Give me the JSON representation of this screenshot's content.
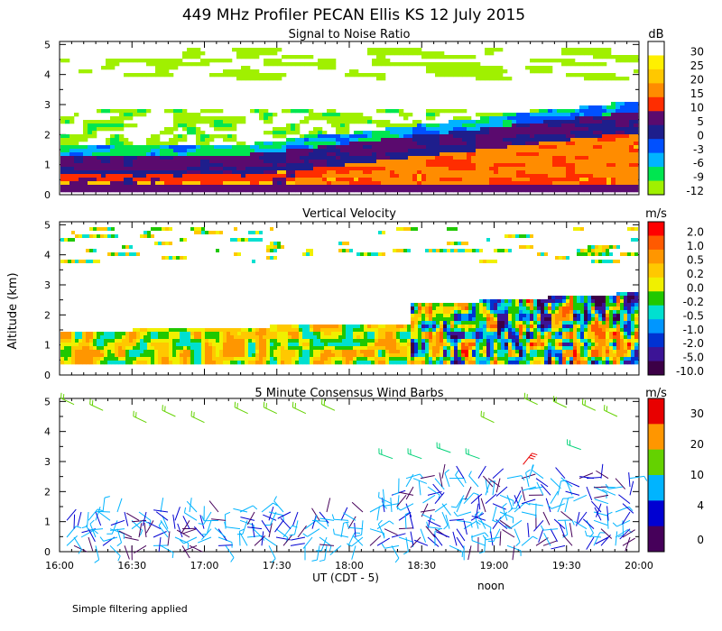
{
  "title": "449 MHz Profiler PECAN Ellis KS 12 July 2015",
  "y_axis_label": "Altitude (km)",
  "x_axis_label": "UT  (CDT - 5)",
  "noon_label": "noon",
  "footer": "Simple filtering applied",
  "chart_data": [
    {
      "type": "heatmap",
      "title": "Signal to Noise Ratio",
      "unit": "dB",
      "x_ticks": [
        "16:00",
        "16:30",
        "17:00",
        "17:30",
        "18:00",
        "18:30",
        "19:00",
        "19:30",
        "20:00"
      ],
      "y_ticks": [
        "0",
        "1",
        "2",
        "3",
        "4",
        "5"
      ],
      "xlim": [
        16.0,
        20.0
      ],
      "ylim": [
        0,
        5.1
      ],
      "colorbar": {
        "labels": [
          "30",
          "25",
          "20",
          "15",
          "10",
          "5",
          "0",
          "-3",
          "-6",
          "-9",
          "-12"
        ],
        "colors": [
          "#ffffff",
          "#fff000",
          "#ffc800",
          "#ff8c00",
          "#ff2d00",
          "#5a0a6e",
          "#1e1e8c",
          "#0050ff",
          "#00b4ff",
          "#00e650",
          "#a0f000"
        ]
      },
      "note": "Strong echo layer (10-25 dB) below ~1 km from 16:00, deepening to ~2.5 km by 20:00; scattered weak returns up to 5 km."
    },
    {
      "type": "heatmap",
      "title": "Vertical Velocity",
      "unit": "m/s",
      "x_ticks": [
        "16:00",
        "16:30",
        "17:00",
        "17:30",
        "18:00",
        "18:30",
        "19:00",
        "19:30",
        "20:00"
      ],
      "y_ticks": [
        "0",
        "1",
        "2",
        "3",
        "4",
        "5"
      ],
      "xlim": [
        16.0,
        20.0
      ],
      "ylim": [
        0,
        5.1
      ],
      "colorbar": {
        "labels": [
          "2.0",
          "1.0",
          "0.5",
          "0.2",
          "0.0",
          "-0.2",
          "-0.5",
          "-1.0",
          "-2.0",
          "-5.0",
          "-10.0"
        ],
        "colors": [
          "#ff0000",
          "#ff5a00",
          "#ff9600",
          "#ffc800",
          "#f0f000",
          "#20c800",
          "#00e0d0",
          "#0096ff",
          "#0032d2",
          "#3c1496",
          "#3c0046"
        ]
      },
      "note": "Mostly weak vertical motion (-0.2 to 0.5 m/s) below 2 km before 18:30; strong up/down drafts (-5 to 2 m/s) up to ~2.8 km after 18:30."
    },
    {
      "type": "wind-barbs",
      "title": "5 Minute Consensus Wind Barbs",
      "unit": "m/s",
      "x_ticks": [
        "16:00",
        "16:30",
        "17:00",
        "17:30",
        "18:00",
        "18:30",
        "19:00",
        "19:30",
        "20:00"
      ],
      "y_ticks": [
        "0",
        "1",
        "2",
        "3",
        "4",
        "5"
      ],
      "xlim": [
        16.0,
        20.0
      ],
      "ylim": [
        0,
        5.1
      ],
      "colorbar": {
        "labels": [
          "30",
          "20",
          "10",
          "4",
          "0"
        ],
        "colors": [
          "#e80000",
          "#ff9600",
          "#64d200",
          "#00b4ff",
          "#0000d2",
          "#46005a"
        ]
      },
      "note": "Light (0-6 m/s) variable winds below 3 km; 10-16 m/s winds near 4.5-5 km; ~30 m/s barbs near 3 km around 19:15."
    }
  ]
}
